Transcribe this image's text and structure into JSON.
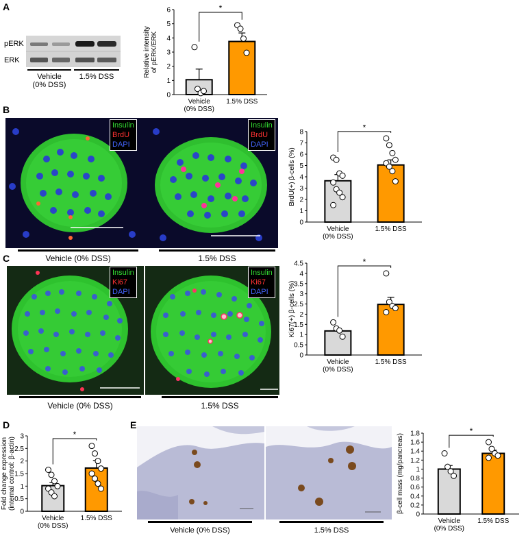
{
  "panels": {
    "A": "A",
    "B": "B",
    "C": "C",
    "D": "D",
    "E": "E"
  },
  "western": {
    "row1": "pERK",
    "row2": "ERK",
    "group1_line1": "Vehicle",
    "group1_line2": "(0% DSS)",
    "group2": "1.5% DSS"
  },
  "panelB": {
    "left_label": "Vehicle    (0% DSS)",
    "right_label": "1.5% DSS",
    "legend": [
      "Insulin",
      "BrdU",
      "DAPI"
    ]
  },
  "panelC": {
    "left_label": "Vehicle    (0% DSS)",
    "right_label": "1.5% DSS",
    "legend": [
      "Insulin",
      "Ki67",
      "DAPI"
    ]
  },
  "panelE": {
    "left_label": "Vehicle    (0% DSS)",
    "right_label": "1.5% DSS"
  },
  "colors": {
    "vehicle": "#d9d9d9",
    "dss": "#ff9900",
    "insulin": "#33dd33",
    "marker": "#ff3333",
    "dapi": "#4466ff"
  },
  "chart_data": [
    {
      "id": "A",
      "type": "bar",
      "categories": [
        "Vehicle\n(0% DSS)",
        "1.5% DSS"
      ],
      "values": [
        1.05,
        3.75
      ],
      "errors": [
        0.75,
        0.6
      ],
      "points": [
        [
          3.35,
          0.4,
          0.1,
          0.25
        ],
        [
          4.9,
          4.65,
          3.95,
          2.95
        ]
      ],
      "ylabel": "Relative intensity\nof pERK/ERK",
      "ylim": [
        0,
        6
      ],
      "yticks": [
        0,
        1,
        2,
        3,
        4,
        5,
        6
      ],
      "significance": "*"
    },
    {
      "id": "B",
      "type": "bar",
      "categories": [
        "Vehicle\n(0% DSS)",
        "1.5% DSS"
      ],
      "values": [
        3.65,
        5.05
      ],
      "errors": [
        0.55,
        0.45
      ],
      "points": [
        [
          5.7,
          5.5,
          4.3,
          4.1,
          3.5,
          2.9,
          2.6,
          2.2,
          1.5
        ],
        [
          7.4,
          6.8,
          6.1,
          5.5,
          5.2,
          4.9,
          4.5,
          3.6
        ]
      ],
      "ylabel": "BrdU(+) β-cells (%)",
      "ylim": [
        0,
        8
      ],
      "yticks": [
        0,
        1,
        2,
        3,
        4,
        5,
        6,
        7,
        8
      ],
      "significance": "*"
    },
    {
      "id": "C",
      "type": "bar",
      "categories": [
        "Vehicle\n(0% DSS)",
        "1.5% DSS"
      ],
      "values": [
        1.18,
        2.48
      ],
      "errors": [
        0.12,
        0.35
      ],
      "points": [
        [
          1.6,
          1.3,
          1.2,
          0.9
        ],
        [
          4.0,
          2.6,
          2.4,
          2.3,
          2.1
        ]
      ],
      "ylabel": "Ki67(+) β-cells (%)",
      "ylim": [
        0,
        4.5
      ],
      "yticks": [
        0,
        0.5,
        1,
        1.5,
        2,
        2.5,
        3,
        3.5,
        4,
        4.5
      ],
      "significance": "*"
    },
    {
      "id": "D",
      "type": "bar",
      "categories": [
        "Vehicle\n(0% DSS)",
        "1.5% DSS"
      ],
      "values": [
        1.02,
        1.72
      ],
      "errors": [
        0.12,
        0.3
      ],
      "points": [
        [
          1.65,
          1.45,
          1.2,
          1.0,
          0.9,
          0.75,
          0.6
        ],
        [
          2.6,
          2.3,
          2.0,
          1.7,
          1.5,
          1.3,
          1.1,
          0.9
        ]
      ],
      "ylabel": "Fold change expression\n(internal control: β-actin)",
      "ylim": [
        0,
        3
      ],
      "yticks": [
        0,
        0.5,
        1,
        1.5,
        2,
        2.5,
        3
      ],
      "significance": "*"
    },
    {
      "id": "E",
      "type": "bar",
      "categories": [
        "Vehicle\n(0% DSS)",
        "1.5% DSS"
      ],
      "values": [
        1.0,
        1.35
      ],
      "errors": [
        0.08,
        0.07
      ],
      "points": [
        [
          1.35,
          1.05,
          0.95,
          0.85
        ],
        [
          1.6,
          1.45,
          1.35,
          1.3,
          1.25
        ]
      ],
      "ylabel": "β-cell mass (mg/pancreas)",
      "ylim": [
        0,
        1.8
      ],
      "yticks": [
        0,
        0.2,
        0.4,
        0.6,
        0.8,
        1,
        1.2,
        1.4,
        1.6,
        1.8
      ],
      "significance": "*"
    }
  ]
}
